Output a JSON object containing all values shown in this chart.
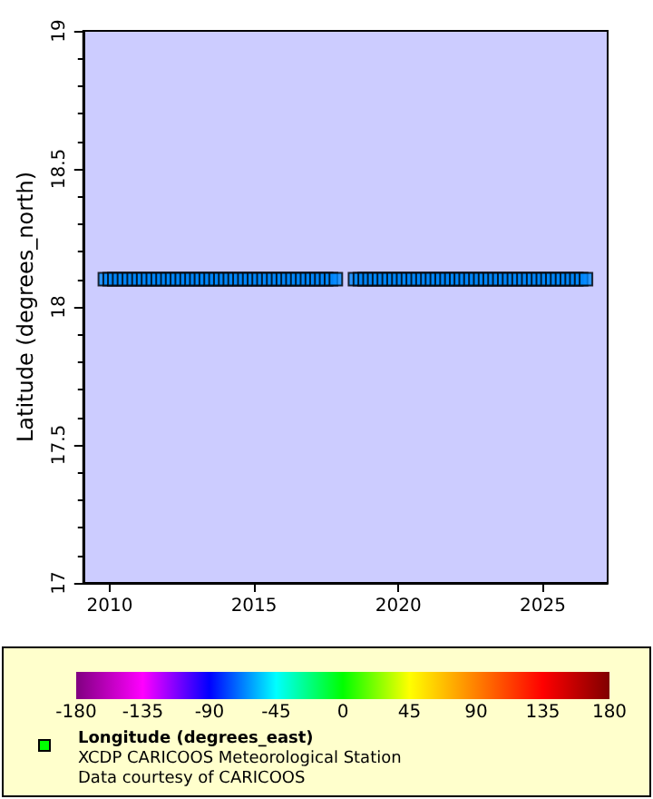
{
  "chart_data": {
    "type": "scatter",
    "ylabel": "Latitude (degrees_north)",
    "clabel": "Longitude (degrees_east)",
    "annotations": [
      "XCDP CARICOOS Meteorological Station",
      "Data courtesy of CARICOOS"
    ],
    "xlim": [
      "2009-02",
      "2027-04"
    ],
    "xticks": [
      "2010",
      "2015",
      "2020",
      "2025"
    ],
    "ylim": [
      17,
      19
    ],
    "yticks": [
      17,
      17.5,
      18,
      18.5,
      19
    ],
    "clim": [
      -180,
      180
    ],
    "cticks": [
      -180,
      -135,
      -90,
      -45,
      0,
      45,
      90,
      135,
      180
    ],
    "marker": "square",
    "grid": false,
    "series": [
      {
        "x": [
          "2009-11",
          "2010-01",
          "2010-03",
          "2010-05",
          "2010-07",
          "2010-09",
          "2010-11",
          "2011-01",
          "2011-03",
          "2011-05",
          "2011-07",
          "2011-09",
          "2011-11",
          "2012-01",
          "2012-03",
          "2012-05",
          "2012-07",
          "2012-09",
          "2012-11",
          "2013-01",
          "2013-03",
          "2013-05",
          "2013-07",
          "2013-09",
          "2013-11",
          "2014-01",
          "2014-03",
          "2014-05",
          "2014-07",
          "2014-09",
          "2014-11",
          "2015-01",
          "2015-03",
          "2015-05",
          "2015-07",
          "2015-09",
          "2015-11",
          "2016-01",
          "2016-03",
          "2016-05",
          "2016-07",
          "2016-09",
          "2016-11",
          "2017-01",
          "2017-03",
          "2017-05",
          "2017-07",
          "2017-09",
          "2017-11",
          "2018-07",
          "2018-09",
          "2018-11",
          "2019-01",
          "2019-03",
          "2019-05",
          "2019-07",
          "2019-09",
          "2019-11",
          "2020-01",
          "2020-03",
          "2020-05",
          "2020-07",
          "2020-09",
          "2020-11",
          "2021-01",
          "2021-03",
          "2021-05",
          "2021-07",
          "2021-09",
          "2021-11",
          "2022-01",
          "2022-03",
          "2022-05",
          "2022-07",
          "2022-09",
          "2022-11",
          "2023-01",
          "2023-03",
          "2023-05",
          "2023-07",
          "2023-09",
          "2023-11",
          "2024-01",
          "2024-03",
          "2024-05",
          "2024-07",
          "2024-09",
          "2024-11",
          "2025-01",
          "2025-03",
          "2025-05",
          "2025-07",
          "2025-09",
          "2025-11",
          "2026-01",
          "2026-03",
          "2026-05",
          "2026-07"
        ],
        "values": [
          18.1,
          18.1,
          18.1,
          18.1,
          18.1,
          18.1,
          18.1,
          18.1,
          18.1,
          18.1,
          18.1,
          18.1,
          18.1,
          18.1,
          18.1,
          18.1,
          18.1,
          18.1,
          18.1,
          18.1,
          18.1,
          18.1,
          18.1,
          18.1,
          18.1,
          18.1,
          18.1,
          18.1,
          18.1,
          18.1,
          18.1,
          18.1,
          18.1,
          18.1,
          18.1,
          18.1,
          18.1,
          18.1,
          18.1,
          18.1,
          18.1,
          18.1,
          18.1,
          18.1,
          18.1,
          18.1,
          18.1,
          18.1,
          18.1,
          18.1,
          18.1,
          18.1,
          18.1,
          18.1,
          18.1,
          18.1,
          18.1,
          18.1,
          18.1,
          18.1,
          18.1,
          18.1,
          18.1,
          18.1,
          18.1,
          18.1,
          18.1,
          18.1,
          18.1,
          18.1,
          18.1,
          18.1,
          18.1,
          18.1,
          18.1,
          18.1,
          18.1,
          18.1,
          18.1,
          18.1,
          18.1,
          18.1,
          18.1,
          18.1,
          18.1,
          18.1,
          18.1,
          18.1,
          18.1,
          18.1,
          18.1,
          18.1,
          18.1,
          18.1,
          18.1,
          18.1,
          18.1,
          18.1
        ],
        "cvalues": [
          -66,
          -66,
          -66,
          -66,
          -66,
          -66,
          -66,
          -66,
          -66,
          -66,
          -66,
          -66,
          -66,
          -66,
          -66,
          -66,
          -66,
          -66,
          -66,
          -66,
          -66,
          -66,
          -66,
          -66,
          -66,
          -66,
          -66,
          -66,
          -66,
          -66,
          -66,
          -66,
          -66,
          -66,
          -66,
          -66,
          -66,
          -66,
          -66,
          -66,
          -66,
          -66,
          -66,
          -66,
          -66,
          -66,
          -66,
          -66,
          -66,
          -66,
          -66,
          -66,
          -66,
          -66,
          -66,
          -66,
          -66,
          -66,
          -66,
          -66,
          -66,
          -66,
          -66,
          -66,
          -66,
          -66,
          -66,
          -66,
          -66,
          -66,
          -66,
          -66,
          -66,
          -66,
          -66,
          -66,
          -66,
          -66,
          -66,
          -66,
          -66,
          -66,
          -66,
          -66,
          -66,
          -66,
          -66,
          -66,
          -66,
          -66,
          -66,
          -66,
          -66,
          -66,
          -66,
          -66,
          -66,
          -66
        ]
      }
    ]
  }
}
